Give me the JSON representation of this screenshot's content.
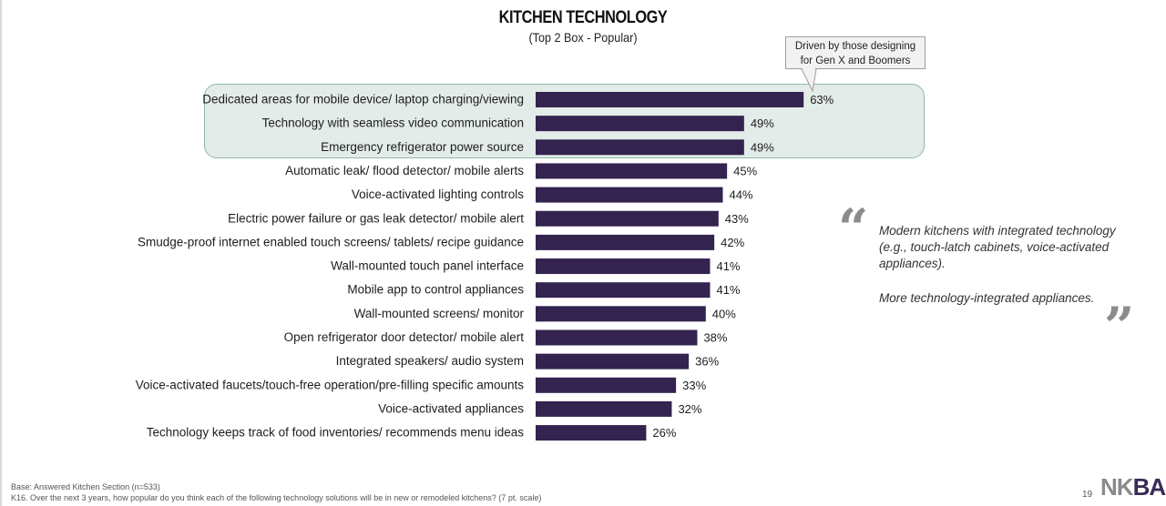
{
  "chart_data": {
    "type": "bar",
    "orientation": "horizontal",
    "title": "KITCHEN TECHNOLOGY",
    "subtitle": "(Top 2 Box - Popular)",
    "categories": [
      "Dedicated areas for mobile device/ laptop charging/viewing",
      "Technology with seamless video communication",
      "Emergency refrigerator power source",
      "Automatic leak/ flood detector/ mobile alerts",
      "Voice-activated lighting controls",
      "Electric power failure or gas leak detector/ mobile alert",
      "Smudge-proof internet enabled touch screens/ tablets/ recipe guidance",
      "Wall-mounted touch panel interface",
      "Mobile app to control appliances",
      "Wall-mounted screens/ monitor",
      "Open refrigerator door detector/ mobile alert",
      "Integrated speakers/ audio system",
      "Voice-activated faucets/touch-free operation/pre-filling specific amounts",
      "Voice-activated appliances",
      "Technology keeps track of food inventories/ recommends menu ideas"
    ],
    "values": [
      63,
      49,
      49,
      45,
      44,
      43,
      42,
      41,
      41,
      40,
      38,
      36,
      33,
      32,
      26
    ],
    "value_labels": [
      "63%",
      "49%",
      "49%",
      "45%",
      "44%",
      "43%",
      "42%",
      "41%",
      "41%",
      "40%",
      "38%",
      "36%",
      "33%",
      "32%",
      "26%"
    ],
    "unit": "%",
    "bar_color": "#33234f",
    "highlight_color": "#e3ece8",
    "highlighted_categories": [
      0,
      1,
      2
    ],
    "grid": false
  },
  "callout": {
    "line1": "Driven by those designing",
    "line2": "for Gen X and Boomers"
  },
  "quotes": {
    "quote1": "Modern kitchens with integrated technology (e.g., touch-latch cabinets, voice-activated appliances).",
    "quote2": "More technology-integrated appliances.",
    "color": "#8c8c8c"
  },
  "footer": {
    "base": "Base:  Answered Kitchen Section (n=533)",
    "question": "K16.   Over the next 3 years, how popular do you think each of the following technology solutions will be in new or remodeled kitchens? (7 pt. scale)",
    "page_number": "19",
    "logo_text_a": "NK",
    "logo_text_b": "BA"
  }
}
